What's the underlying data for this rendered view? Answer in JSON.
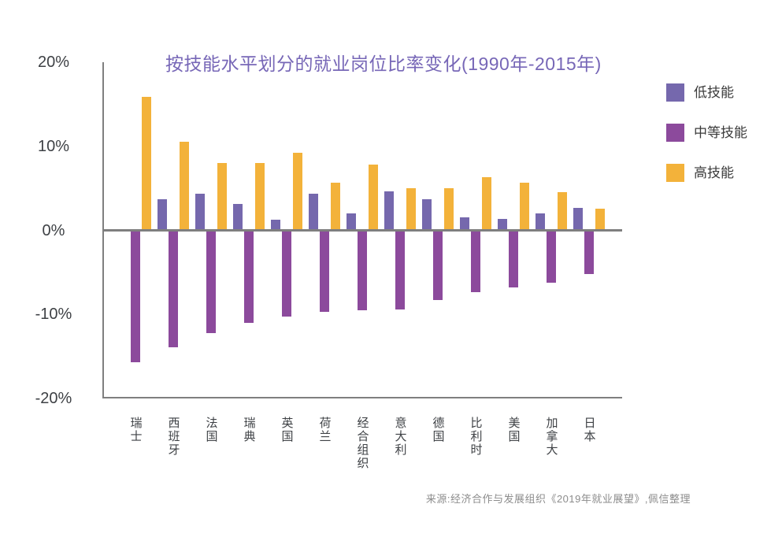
{
  "source": "来源:经济合作与发展组织《2019年就业展望》,佩信整理",
  "colors": {
    "background": "#ffffff",
    "title_text": "#7767b7",
    "axis_line": "#7f7f7f",
    "tick_text": "#3e4145",
    "category_text": "#3e4145",
    "legend_text": "#3b3b3b",
    "source_text": "#8c8c8c",
    "low_skill": "#7568ad",
    "medium_skill": "#8c4a9c",
    "high_skill": "#f3b23a"
  },
  "chart_data": {
    "type": "bar",
    "title": "按技能水平划分的就业岗位比率变化(1990年-2015年)",
    "unit": "%",
    "grid": false,
    "legend_position": "top-right",
    "ylim": [
      -20,
      20
    ],
    "y_ticks": [
      {
        "label": "20%",
        "value": 20
      },
      {
        "label": "10%",
        "value": 10
      },
      {
        "label": "0%",
        "value": 0
      },
      {
        "label": "-10%",
        "value": -10
      },
      {
        "label": "-20%",
        "value": -20
      }
    ],
    "categories": [
      "瑞士",
      "西班牙",
      "法国",
      "瑞典",
      "英国",
      "荷兰",
      "经合组织",
      "意大利",
      "德国",
      "比利时",
      "美国",
      "加拿大",
      "日本"
    ],
    "series": [
      {
        "key": "low-skill",
        "name": "低技能",
        "color": "#7568ad",
        "values": [
          0,
          3.7,
          4.4,
          3.1,
          1.3,
          4.4,
          2.0,
          4.6,
          3.7,
          1.5,
          1.4,
          2.0,
          2.7
        ]
      },
      {
        "key": "medium-skill",
        "name": "中等技能",
        "color": "#8c4a9c",
        "values": [
          -15.7,
          -13.9,
          -12.2,
          -11.0,
          -10.3,
          -9.7,
          -9.5,
          -9.4,
          -8.3,
          -7.4,
          -6.8,
          -6.2,
          -5.2
        ]
      },
      {
        "key": "high-skill",
        "name": "高技能",
        "color": "#f3b23a",
        "values": [
          15.9,
          10.5,
          8.0,
          8.0,
          9.2,
          5.7,
          7.8,
          5.0,
          5.0,
          6.3,
          5.7,
          4.5,
          2.6
        ]
      }
    ]
  }
}
